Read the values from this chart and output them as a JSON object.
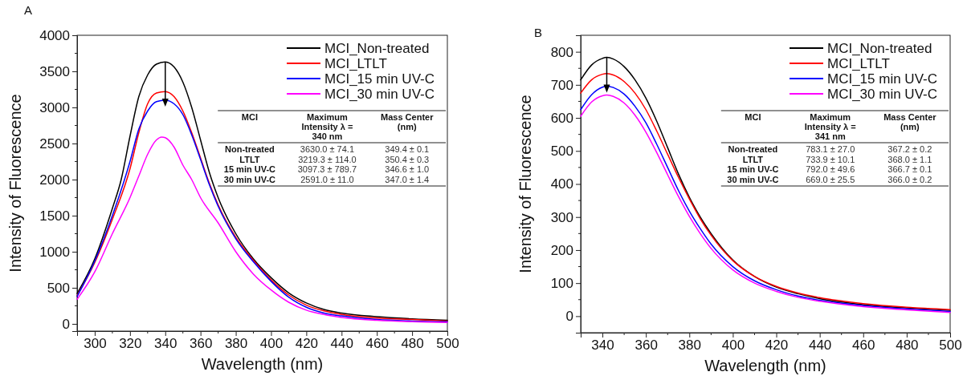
{
  "chart_data": [
    {
      "type": "line",
      "title": "A",
      "xlabel": "Wavelength (nm)",
      "ylabel": "Intensity of Fluorescence",
      "xlim": [
        290,
        500
      ],
      "ylim": [
        -100,
        4000
      ],
      "xticks": [
        300,
        320,
        340,
        360,
        380,
        400,
        420,
        440,
        460,
        480,
        500
      ],
      "yticks": [
        0,
        500,
        1000,
        1500,
        2000,
        2500,
        3000,
        3500,
        4000
      ],
      "legend": "top right",
      "grid": false,
      "marker": "none",
      "line_style": "solid",
      "annotations": [
        "MCI",
        "Maximum Intensity λ = 340 nm",
        "Mass Center (nm)",
        "Non-treated",
        "3630.0 ± 74.1",
        "349.4 ± 0.1",
        "LTLT",
        "3219.3 ± 114.0",
        "350.4 ± 0.3",
        "15 min UV-C",
        "3097.3 ± 789.7",
        "346.6 ± 1.0",
        "30 min UV-C",
        "2591.0 ± 11.0",
        "347.0 ± 1.4"
      ],
      "series": [
        {
          "name": "MCI_Non-treated",
          "color": "#000000",
          "x": [
            290,
            300,
            310,
            315,
            320,
            325,
            330,
            335,
            340,
            345,
            350,
            355,
            360,
            365,
            370,
            380,
            390,
            400,
            410,
            420,
            430,
            440,
            460,
            480,
            500
          ],
          "values": [
            420,
            900,
            1600,
            2000,
            2600,
            3150,
            3450,
            3600,
            3630,
            3560,
            3350,
            3000,
            2550,
            2100,
            1750,
            1250,
            900,
            640,
            430,
            290,
            200,
            150,
            100,
            70,
            50
          ]
        },
        {
          "name": "MCI_LTLT",
          "color": "#ff0000",
          "x": [
            290,
            300,
            310,
            320,
            325,
            330,
            335,
            340,
            345,
            350,
            355,
            360,
            365,
            370,
            380,
            390,
            400,
            410,
            420,
            430,
            440,
            460,
            480,
            500
          ],
          "values": [
            390,
            850,
            1450,
            2150,
            2650,
            3050,
            3200,
            3220,
            3150,
            2950,
            2650,
            2300,
            1950,
            1650,
            1200,
            880,
            610,
            400,
            260,
            180,
            130,
            80,
            60,
            40
          ]
        },
        {
          "name": "MCI_15 min UV-C",
          "color": "#0000ff",
          "x": [
            290,
            300,
            310,
            320,
            325,
            330,
            335,
            340,
            345,
            350,
            355,
            360,
            365,
            370,
            380,
            390,
            400,
            410,
            420,
            430,
            440,
            460,
            480,
            500
          ],
          "values": [
            380,
            870,
            1500,
            2250,
            2700,
            2950,
            3080,
            3100,
            3050,
            2900,
            2620,
            2280,
            1930,
            1630,
            1180,
            860,
            590,
            370,
            230,
            150,
            110,
            60,
            40,
            30
          ]
        },
        {
          "name": "MCI_30 min UV-C",
          "color": "#ff00ff",
          "x": [
            290,
            300,
            310,
            320,
            325,
            330,
            335,
            338,
            340,
            345,
            350,
            355,
            360,
            370,
            380,
            390,
            400,
            410,
            420,
            430,
            440,
            460,
            480,
            500
          ],
          "values": [
            340,
            720,
            1250,
            1750,
            2050,
            2350,
            2550,
            2590,
            2580,
            2450,
            2200,
            2000,
            1750,
            1400,
            1000,
            690,
            470,
            300,
            190,
            130,
            90,
            50,
            30,
            20
          ]
        }
      ]
    },
    {
      "type": "line",
      "title": "B",
      "xlabel": "Wavelength (nm)",
      "ylabel": "Intensity of Fluorescence",
      "xlim": [
        330,
        500
      ],
      "ylim": [
        -50,
        850
      ],
      "xticks": [
        340,
        360,
        380,
        400,
        420,
        440,
        460,
        480,
        500
      ],
      "yticks": [
        0,
        100,
        200,
        300,
        400,
        500,
        600,
        700,
        800
      ],
      "legend": "top right",
      "grid": false,
      "marker": "none",
      "line_style": "solid",
      "annotations": [
        "MCI",
        "Maximum Intensity λ = 341 nm",
        "Mass Center (nm)",
        "Non-treated",
        "783.1 ± 27.0",
        "367.2 ± 0.2",
        "LTLT",
        "733.9 ± 10.1",
        "368.0 ± 1.1",
        "15 min UV-C",
        "792.0 ± 49.6",
        "366.7 ± 0.1",
        "30 min UV-C",
        "669.0 ± 25.5",
        "366.0 ± 0.2"
      ],
      "series": [
        {
          "name": "MCI_Non-treated",
          "color": "#000000",
          "x": [
            330,
            335,
            340,
            342,
            345,
            350,
            355,
            360,
            365,
            370,
            375,
            380,
            385,
            390,
            400,
            410,
            420,
            430,
            440,
            460,
            480,
            500
          ],
          "values": [
            715,
            760,
            780,
            783,
            778,
            755,
            715,
            660,
            590,
            510,
            430,
            360,
            300,
            250,
            170,
            120,
            88,
            68,
            53,
            35,
            25,
            18
          ]
        },
        {
          "name": "MCI_LTLT",
          "color": "#ff0000",
          "x": [
            330,
            335,
            340,
            342,
            345,
            350,
            355,
            360,
            365,
            370,
            375,
            380,
            385,
            390,
            400,
            410,
            420,
            430,
            440,
            460,
            480,
            500
          ],
          "values": [
            675,
            715,
            732,
            734,
            730,
            710,
            675,
            625,
            560,
            490,
            420,
            355,
            295,
            245,
            168,
            120,
            90,
            70,
            56,
            38,
            27,
            20
          ]
        },
        {
          "name": "MCI_15 min UV-C",
          "color": "#0000ff",
          "x": [
            330,
            335,
            340,
            342,
            345,
            350,
            355,
            360,
            365,
            370,
            375,
            380,
            385,
            390,
            400,
            410,
            420,
            430,
            440,
            460,
            480,
            500
          ],
          "values": [
            625,
            670,
            693,
            696,
            692,
            672,
            635,
            585,
            520,
            450,
            380,
            318,
            265,
            218,
            150,
            107,
            80,
            61,
            48,
            32,
            22,
            14
          ]
        },
        {
          "name": "MCI_30 min UV-C",
          "color": "#ff00ff",
          "x": [
            330,
            335,
            340,
            342,
            345,
            350,
            355,
            360,
            365,
            370,
            375,
            380,
            385,
            390,
            400,
            410,
            420,
            430,
            440,
            460,
            480,
            500
          ],
          "values": [
            605,
            648,
            667,
            669,
            665,
            645,
            608,
            557,
            495,
            428,
            362,
            302,
            250,
            205,
            140,
            100,
            75,
            57,
            45,
            29,
            19,
            11
          ]
        }
      ]
    }
  ]
}
